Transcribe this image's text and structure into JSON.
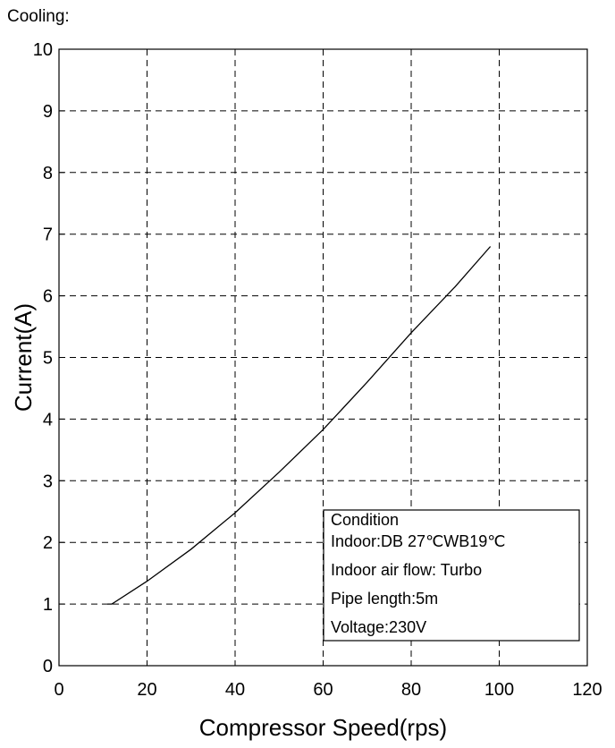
{
  "chart_data": {
    "type": "line",
    "title": "Cooling:",
    "xlabel": "Compressor Speed(rps)",
    "ylabel": "Current(A)",
    "xlim": [
      0,
      120
    ],
    "ylim": [
      0,
      10
    ],
    "xticks": [
      0,
      20,
      40,
      60,
      80,
      100,
      120
    ],
    "yticks": [
      0,
      1,
      2,
      3,
      4,
      5,
      6,
      7,
      8,
      9,
      10
    ],
    "grid": true,
    "series": [
      {
        "x": [
          11,
          12,
          20,
          30,
          40,
          50,
          60,
          70,
          80,
          90,
          98
        ],
        "y": [
          1.0,
          1.0,
          1.37,
          1.89,
          2.48,
          3.14,
          3.83,
          4.6,
          5.4,
          6.15,
          6.8
        ]
      }
    ],
    "condition_box": {
      "lines": [
        "Condition",
        "Indoor:DB 27℃WB19℃",
        "Indoor air flow: Turbo",
        "Pipe length:5m",
        "Voltage:230V"
      ],
      "placement": "bottom-right"
    }
  }
}
